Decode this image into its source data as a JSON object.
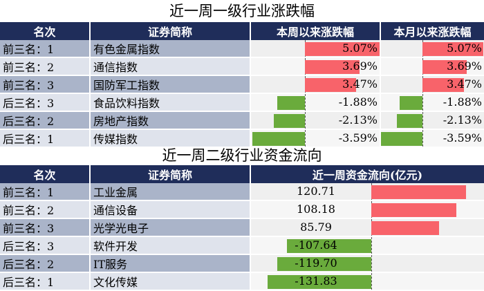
{
  "table1": {
    "title": "近一周一级行业涨跌幅",
    "headers": [
      "名次",
      "证券简称",
      "本周以来涨跌幅",
      "本月以来涨跌幅"
    ],
    "rows": [
      {
        "rank": "前三名：1",
        "name": "有色金属指数",
        "week": "5.07%",
        "month": "5.07%",
        "week_value": 5.07,
        "month_value": 5.07
      },
      {
        "rank": "前三名：2",
        "name": "通信指数",
        "week": "3.69%",
        "month": "3.69%",
        "week_value": 3.69,
        "month_value": 3.69
      },
      {
        "rank": "前三名：3",
        "name": "国防军工指数",
        "week": "3.47%",
        "month": "3.47%",
        "week_value": 3.47,
        "month_value": 3.47
      },
      {
        "rank": "后三名：3",
        "name": "食品饮料指数",
        "week": "-1.88%",
        "month": "-1.88%",
        "week_value": -1.88,
        "month_value": -1.88
      },
      {
        "rank": "后三名：2",
        "name": "房地产指数",
        "week": "-2.13%",
        "month": "-2.13%",
        "week_value": -2.13,
        "month_value": -2.13
      },
      {
        "rank": "后三名：1",
        "name": "传媒指数",
        "week": "-3.59%",
        "month": "-3.59%",
        "week_value": -3.59,
        "month_value": -3.59
      }
    ],
    "pos_color": "#f8636a",
    "neg_color": "#6aab3c"
  },
  "table2": {
    "title": "近一周二级行业资金流向",
    "headers": [
      "名次",
      "证券简称",
      "近一周资金流向(亿元)"
    ],
    "rows": [
      {
        "rank": "前三名：1",
        "name": "工业金属",
        "flow": "120.71",
        "flow_value": 120.71
      },
      {
        "rank": "前三名：2",
        "name": "通信设备",
        "flow": "108.18",
        "flow_value": 108.18
      },
      {
        "rank": "前三名：3",
        "name": "光学光电子",
        "flow": "85.79",
        "flow_value": 85.79
      },
      {
        "rank": "后三名：3",
        "name": "软件开发",
        "flow": "-107.64",
        "flow_value": -107.64
      },
      {
        "rank": "后三名：2",
        "name": "IT服务",
        "flow": "-119.70",
        "flow_value": -119.7
      },
      {
        "rank": "后三名：1",
        "name": "文化传媒",
        "flow": "-131.83",
        "flow_value": -131.83
      }
    ]
  }
}
